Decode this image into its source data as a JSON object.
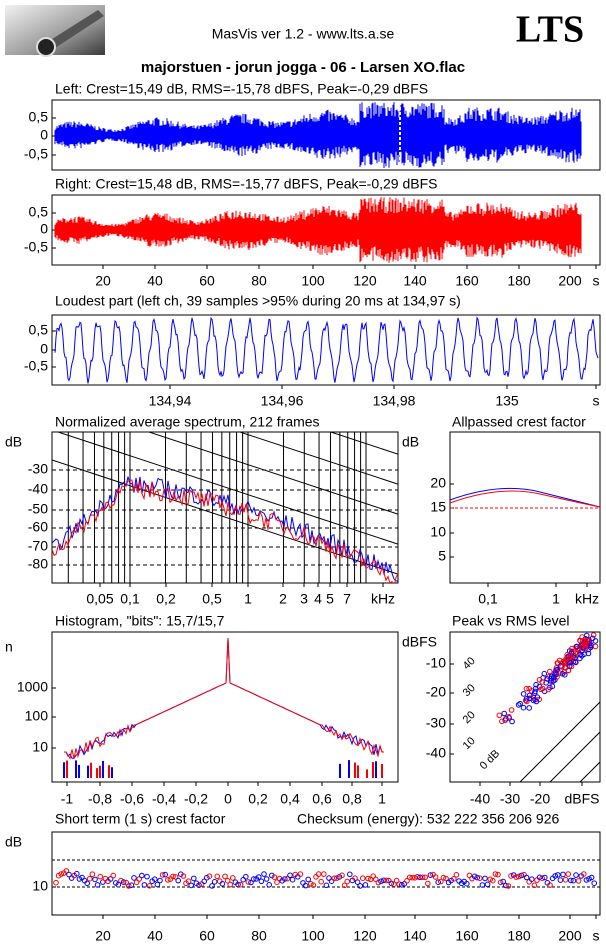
{
  "header": {
    "app": "MasVis ver 1.2 - www.lts.a.se",
    "logo": "LTS",
    "title": "majorstuen - jorun jogga - 06 - Larsen XO.flac"
  },
  "panels": [
    {
      "title": "Left: Crest=15,49 dB, RMS=-15,78 dBFS, Peak=-0,29 dBFS",
      "yticks": [
        "0,5",
        "0",
        "-0,5"
      ]
    },
    {
      "title": "Right: Crest=15,48 dB, RMS=-15,77 dBFS, Peak=-0,29 dBFS",
      "yticks": [
        "0,5",
        "0",
        "-0,5"
      ],
      "xticks": [
        "20",
        "40",
        "60",
        "80",
        "100",
        "120",
        "140",
        "160",
        "180",
        "200",
        "s"
      ]
    },
    {
      "title": "Loudest part (left  ch, 39 samples >95% during 20 ms at 134,97 s)",
      "yticks": [
        "0,5",
        "0",
        "-0,5"
      ],
      "xticks": [
        "134,94",
        "134,96",
        "134,98",
        "135",
        "s"
      ]
    },
    {
      "title": "Normalized average spectrum, 212 frames",
      "ylabel": "dB",
      "yticks": [
        "-30",
        "-40",
        "-50",
        "-60",
        "-70",
        "-80"
      ],
      "xticks": [
        "0,05",
        "0,1",
        "0,2",
        "0,5",
        "1",
        "2",
        "3",
        "4",
        "5",
        "7",
        "kHz"
      ]
    },
    {
      "title": "Allpassed crest factor",
      "ylabel": "dB",
      "yticks": [
        "20",
        "15",
        "10",
        "5"
      ],
      "xticks": [
        "0,1",
        "1",
        "kHz"
      ]
    },
    {
      "title": "Histogram, \"bits\": 15,7/15,7",
      "ylabel": "n",
      "yticks": [
        "1000",
        "100",
        "10"
      ],
      "xticks": [
        "-1",
        "-0,8",
        "-0,6",
        "-0,4",
        "-0,2",
        "0",
        "0,2",
        "0,4",
        "0,6",
        "0,8",
        "1"
      ]
    },
    {
      "title": "Peak vs RMS level",
      "ylabel": "dBFS",
      "yticks": [
        "-10",
        "-20",
        "-30",
        "-40"
      ],
      "xticks": [
        "-40",
        "-30",
        "-20",
        "dBFS"
      ],
      "diagonals": [
        "40",
        "30",
        "20",
        "10",
        "0 dB"
      ]
    },
    {
      "title": "Short term (1 s) crest factor",
      "checksum": "Checksum (energy):  532 222 356 206 926",
      "ylabel": "dB",
      "yticks": [
        "10"
      ],
      "xticks": [
        "20",
        "40",
        "60",
        "80",
        "100",
        "120",
        "140",
        "160",
        "180",
        "200",
        "s"
      ]
    }
  ]
}
